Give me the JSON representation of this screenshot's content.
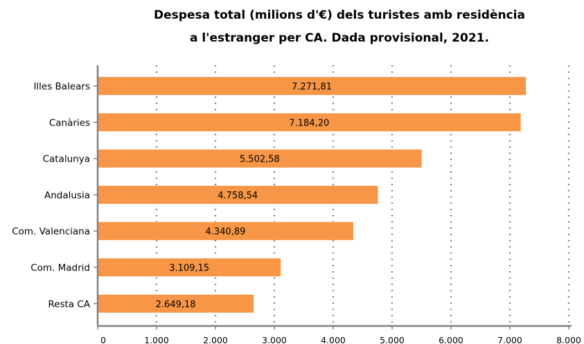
{
  "title_line1": "Despesa total (milions d'€) dels turistes amb residència",
  "title_line2": "a l'estranger per CA. Dada provisional, 2021.",
  "colors": {
    "bar": "#F79646",
    "grid": "#808080",
    "axis": "#808080"
  },
  "chart_data": {
    "type": "bar",
    "orientation": "horizontal",
    "title": "Despesa total (milions d'€) dels turistes amb residència a l'estranger per CA. Dada provisional, 2021.",
    "categories": [
      "Illes Balears",
      "Canàries",
      "Catalunya",
      "Andalusia",
      "Com. Valenciana",
      "Com. Madrid",
      "Resta CA"
    ],
    "values": [
      7271.81,
      7184.2,
      5502.58,
      4758.54,
      4340.89,
      3109.15,
      2649.18
    ],
    "value_labels": [
      "7.271,81",
      "7.184,20",
      "5.502,58",
      "4.758,54",
      "4.340,89",
      "3.109,15",
      "2.649,18"
    ],
    "xlim": [
      0,
      8000
    ],
    "xticks": [
      0,
      1000,
      2000,
      3000,
      4000,
      5000,
      6000,
      7000,
      8000
    ],
    "xtick_labels": [
      "0",
      "1.000",
      "2.000",
      "3.000",
      "4.000",
      "5.000",
      "6.000",
      "7.000",
      "8.000"
    ],
    "grid": "vertical dotted",
    "legend": "none"
  }
}
